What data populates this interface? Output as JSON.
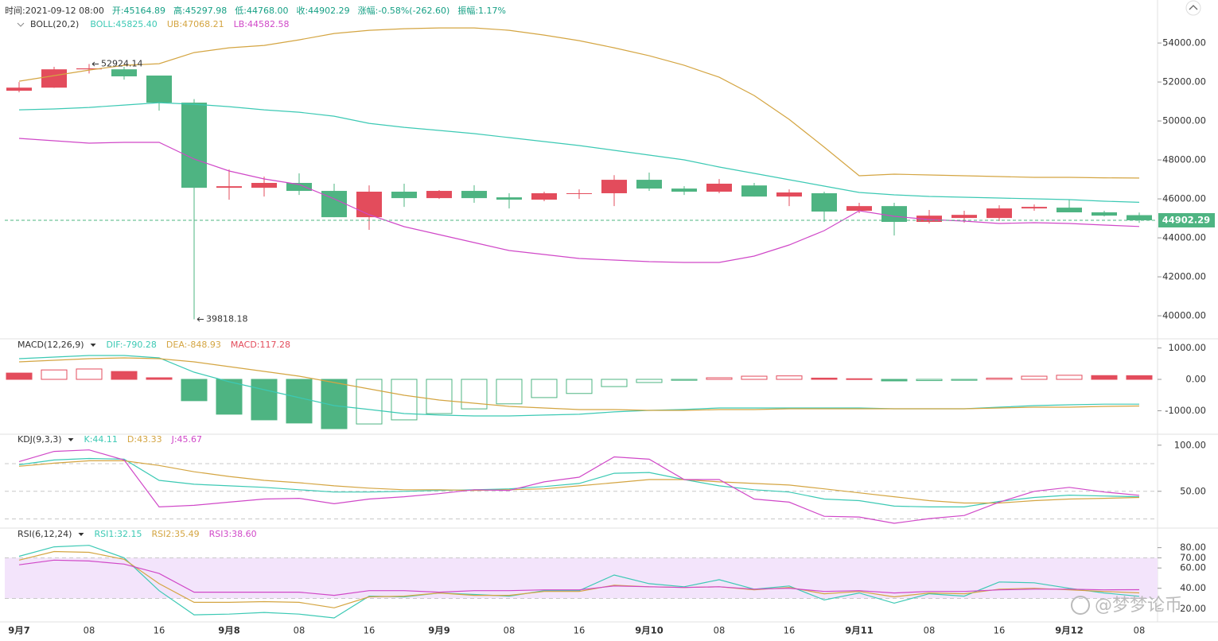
{
  "watermark": "@梦梦论币",
  "chart_data": [
    {
      "type": "candlestick",
      "header": [
        "时间:2021-09-12 08:00",
        "开:45164.89",
        "高:45297.98",
        "低:44768.00",
        "收:44902.29",
        "涨幅:-0.58%(-262.60)",
        "振幅:1.17%"
      ],
      "indicator": "BOLL(20,2)",
      "up_color": "#e34c5c",
      "down_color": "#4eb482",
      "categories": [
        "9月7",
        null,
        "08",
        null,
        "16",
        null,
        "9月8",
        null,
        "08",
        null,
        "16",
        null,
        "9月9",
        null,
        "08",
        null,
        "16",
        null,
        "9月10",
        null,
        "08",
        null,
        "16",
        null,
        "9月11",
        null,
        "08",
        null,
        "16",
        null,
        "9月12",
        null,
        "08"
      ],
      "open": [
        51550,
        51710,
        52650,
        52650,
        52330,
        50940,
        46570,
        46570,
        46820,
        46410,
        45060,
        46370,
        46040,
        46410,
        46080,
        45960,
        46250,
        46290,
        46980,
        46530,
        46370,
        46690,
        46120,
        46290,
        45390,
        45630,
        44820,
        45020,
        45020,
        45510,
        45550,
        45310,
        45164.89
      ],
      "high": [
        52000,
        52780,
        52924.14,
        52780,
        52330,
        51120,
        47510,
        47140,
        47310,
        46780,
        46690,
        46780,
        46450,
        46700,
        46290,
        46370,
        46490,
        47220,
        47350,
        46650,
        47020,
        46820,
        46490,
        46370,
        45800,
        45800,
        45430,
        45390,
        45670,
        45710,
        45960,
        45390,
        45297.98
      ],
      "low": [
        51470,
        51700,
        52440,
        52120,
        50530,
        39818.18,
        45960,
        46120,
        46200,
        45060,
        44410,
        45590,
        46000,
        45800,
        45510,
        45880,
        46000,
        45630,
        46410,
        46200,
        46290,
        46120,
        45630,
        44820,
        45270,
        44120,
        44740,
        44780,
        44860,
        45390,
        45310,
        45100,
        44768
      ],
      "close": [
        51710,
        52650,
        52700,
        52290,
        50940,
        46570,
        46650,
        46820,
        46410,
        45060,
        46370,
        46040,
        46410,
        46040,
        45960,
        46290,
        46290,
        46980,
        46530,
        46370,
        46780,
        46120,
        46330,
        45350,
        45630,
        44820,
        45140,
        45180,
        45510,
        45590,
        45310,
        45140,
        44902.29
      ],
      "series": [
        {
          "name": "BOLL:45825.40",
          "color": "#3cc9b4",
          "values": [
            50573,
            50614,
            50695,
            50818,
            50940,
            50858,
            50736,
            50573,
            50450,
            50246,
            49879,
            49675,
            49512,
            49349,
            49145,
            48941,
            48737,
            48492,
            48247,
            48002,
            47635,
            47309,
            46982,
            46656,
            46330,
            46207,
            46126,
            46085,
            46044,
            46003,
            45962,
            45881,
            45825.4
          ]
        },
        {
          "name": "UB:47068.21",
          "color": "#d4a542",
          "values": [
            52042,
            52327,
            52613,
            52858,
            52939,
            53510,
            53755,
            53878,
            54163,
            54490,
            54653,
            54734,
            54775,
            54775,
            54653,
            54408,
            54122,
            53755,
            53347,
            52858,
            52246,
            51307,
            50083,
            48655,
            47186,
            47268,
            47227,
            47186,
            47146,
            47105,
            47105,
            47080,
            47068.21
          ]
        },
        {
          "name": "LB:44582.58",
          "color": "#d048c8",
          "values": [
            49104,
            48982,
            48859,
            48900,
            48900,
            48043,
            47431,
            47023,
            46738,
            46003,
            45187,
            44575,
            44167,
            43759,
            43351,
            43147,
            42943,
            42862,
            42780,
            42739,
            42739,
            43066,
            43637,
            44371,
            45391,
            45106,
            44942,
            44861,
            44738,
            44779,
            44738,
            44657,
            44582.58
          ]
        }
      ],
      "max_label": "52924.14",
      "min_label": "39818.18",
      "last_price_label": "44902.29",
      "ylim": [
        38860,
        55800
      ],
      "yticks": [
        {
          "value": 54000,
          "label": "54000.00"
        },
        {
          "value": 52000,
          "label": "52000.00"
        },
        {
          "value": 50000,
          "label": "50000.00"
        },
        {
          "value": 48000,
          "label": "48000.00"
        },
        {
          "value": 46000,
          "label": "46000.00"
        },
        {
          "value": 44000,
          "label": "44000.00"
        },
        {
          "value": 42000,
          "label": "42000.00"
        },
        {
          "value": 40000,
          "label": "40000.00"
        }
      ]
    },
    {
      "type": "macd",
      "indicator": "MACD(12,26,9)",
      "up_color": "#e34c5c",
      "down_color": "#4eb482",
      "series": [
        {
          "name": "DIF:-790.28",
          "color": "#3cc9b4",
          "values": [
            658,
            708,
            759,
            759,
            683,
            228,
            -76,
            -329,
            -582,
            -835,
            -961,
            -1088,
            -1138,
            -1164,
            -1164,
            -1138,
            -1113,
            -1037,
            -987,
            -961,
            -911,
            -911,
            -911,
            -911,
            -911,
            -936,
            -936,
            -936,
            -886,
            -835,
            -810,
            -790,
            -790.28
          ]
        },
        {
          "name": "DEA:-848.93",
          "color": "#d4a542",
          "values": [
            557,
            607,
            658,
            683,
            658,
            557,
            405,
            253,
            101,
            -101,
            -304,
            -506,
            -658,
            -759,
            -860,
            -911,
            -962,
            -962,
            -987,
            -987,
            -962,
            -962,
            -936,
            -936,
            -936,
            -936,
            -936,
            -936,
            -911,
            -886,
            -886,
            -860,
            -848.93
          ]
        }
      ],
      "histogram": {
        "name": "MACD:117.28",
        "values": [
          200,
          300,
          330,
          250,
          50,
          -680,
          -1110,
          -1290,
          -1390,
          -1570,
          -1420,
          -1290,
          -1090,
          -940,
          -780,
          -580,
          -450,
          -230,
          -100,
          -30,
          50,
          100,
          110,
          40,
          20,
          -50,
          -40,
          -30,
          40,
          100,
          130,
          120,
          117.28
        ]
      },
      "ylim": [
        -1722,
        1266
      ],
      "yticks": [
        {
          "value": 1000,
          "label": "1000.00"
        },
        {
          "value": 0,
          "label": "0.00"
        },
        {
          "value": -1000,
          "label": "-1000.00"
        }
      ]
    },
    {
      "type": "line",
      "indicator": "KDJ(9,3,3)",
      "series": [
        {
          "name": "K:44.11",
          "color": "#3cc9b4",
          "values": [
            78.8,
            83.9,
            85.6,
            84.8,
            61.9,
            57.6,
            55.9,
            54.3,
            51.7,
            49.2,
            49.2,
            50.0,
            50.9,
            51.7,
            52.6,
            55.1,
            58.5,
            69.5,
            70.4,
            62.7,
            55.9,
            51.7,
            49.2,
            41.6,
            39.9,
            33.9,
            33.1,
            33.1,
            39.0,
            43.3,
            45.8,
            44.9,
            44.11
          ]
        },
        {
          "name": "D:43.33",
          "color": "#d4a542",
          "values": [
            77.1,
            80.5,
            83.1,
            83.1,
            78.0,
            71.2,
            66.1,
            61.9,
            59.3,
            55.9,
            53.4,
            51.7,
            51.7,
            50.9,
            51.7,
            52.6,
            55.9,
            59.3,
            62.7,
            62.7,
            60.2,
            58.5,
            56.8,
            52.6,
            48.3,
            44.1,
            39.9,
            37.3,
            37.3,
            39.9,
            41.6,
            42.4,
            43.33
          ]
        },
        {
          "name": "J:45.67",
          "color": "#d048c8",
          "values": [
            82.2,
            93.2,
            94.9,
            83.9,
            33.1,
            34.8,
            38.2,
            41.6,
            42.4,
            36.5,
            41.6,
            44.1,
            47.5,
            51.7,
            50.9,
            60.2,
            65.3,
            87.3,
            84.8,
            62.7,
            62.7,
            41.6,
            38.2,
            22.9,
            22.1,
            15.3,
            20.4,
            23.8,
            38.2,
            50.0,
            54.3,
            49.2,
            45.67
          ]
        }
      ],
      "reference_lines": [
        80,
        50,
        20
      ],
      "ylim": [
        11,
        111
      ],
      "yticks": [
        {
          "value": 100,
          "label": "100.00"
        },
        {
          "value": 50,
          "label": "50.00"
        }
      ]
    },
    {
      "type": "line",
      "indicator": "RSI(6,12,24)",
      "series": [
        {
          "name": "RSI1:32.15",
          "color": "#3cc9b4",
          "values": [
            71.5,
            80.8,
            82.3,
            70.0,
            37.7,
            13.9,
            14.6,
            16.2,
            14.6,
            10.8,
            32.3,
            31.6,
            35.4,
            33.9,
            32.3,
            37.7,
            37.7,
            53.1,
            44.6,
            41.5,
            48.5,
            39.2,
            42.3,
            28.5,
            35.4,
            25.4,
            34.6,
            32.3,
            46.2,
            45.4,
            40.0,
            35.4,
            32.15
          ]
        },
        {
          "name": "RSI2:35.49",
          "color": "#d4a542",
          "values": [
            67.7,
            76.2,
            75.4,
            68.5,
            44.6,
            26.2,
            26.2,
            26.9,
            26.2,
            20.8,
            31.6,
            32.3,
            35.4,
            33.1,
            33.1,
            36.9,
            36.9,
            43.1,
            41.5,
            40.8,
            41.5,
            38.5,
            40.8,
            34.6,
            36.9,
            31.6,
            35.4,
            34.6,
            39.2,
            40.0,
            38.5,
            36.9,
            35.49
          ]
        },
        {
          "name": "RSI3:38.60",
          "color": "#d048c8",
          "values": [
            63.1,
            67.7,
            66.9,
            63.8,
            54.6,
            36.2,
            36.2,
            36.2,
            36.2,
            33.1,
            37.7,
            37.7,
            36.2,
            37.7,
            37.7,
            38.5,
            38.5,
            42.3,
            41.5,
            40.8,
            41.5,
            39.2,
            40.0,
            36.9,
            37.7,
            35.4,
            36.9,
            36.9,
            38.5,
            39.2,
            39.2,
            38.5,
            38.6
          ]
        }
      ],
      "band": [
        30,
        70
      ],
      "band_color": "#f3e4fb",
      "reference_lines": [
        70,
        30
      ],
      "ylim": [
        7.7,
        98.5
      ],
      "yticks": [
        {
          "value": 80,
          "label": "80.00"
        },
        {
          "value": 70,
          "label": "70.00"
        },
        {
          "value": 60,
          "label": "60.00"
        },
        {
          "value": 40,
          "label": "40.00"
        },
        {
          "value": 20,
          "label": "20.00"
        }
      ]
    }
  ]
}
